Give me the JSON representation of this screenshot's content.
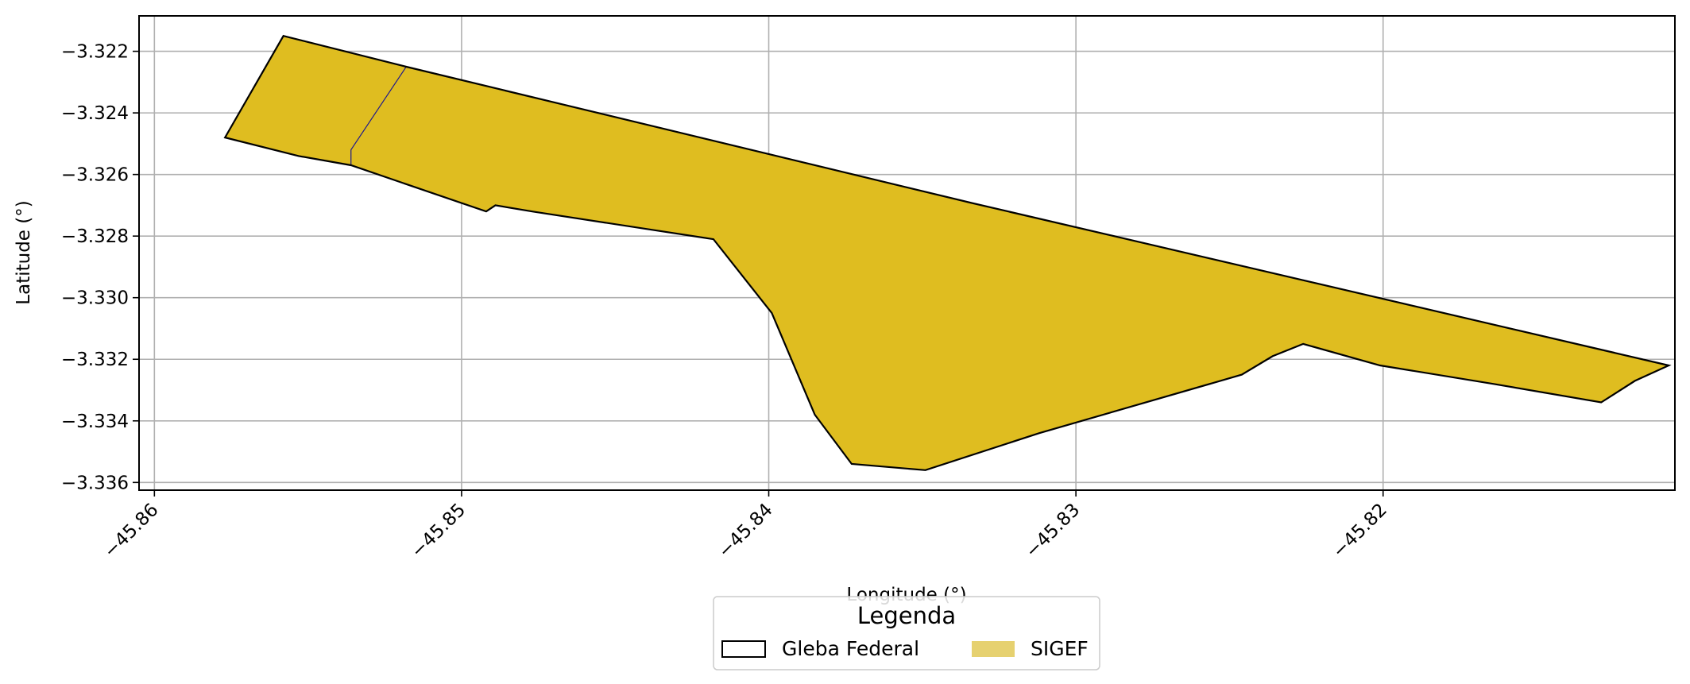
{
  "map": {
    "x_axis": {
      "label": "Longitude (°)",
      "range": [
        -45.8605,
        -45.8105
      ],
      "ticks": [
        {
          "value": -45.86,
          "label": "−45.86"
        },
        {
          "value": -45.85,
          "label": "−45.85"
        },
        {
          "value": -45.84,
          "label": "−45.84"
        },
        {
          "value": -45.83,
          "label": "−45.83"
        },
        {
          "value": -45.82,
          "label": "−45.82"
        }
      ]
    },
    "y_axis": {
      "label": "Latitude (°)",
      "range": [
        -3.33625,
        -3.32085
      ],
      "ticks": [
        {
          "value": -3.322,
          "label": "−3.322"
        },
        {
          "value": -3.324,
          "label": "−3.324"
        },
        {
          "value": -3.326,
          "label": "−3.326"
        },
        {
          "value": -3.328,
          "label": "−3.328"
        },
        {
          "value": -3.33,
          "label": "−3.330"
        },
        {
          "value": -3.332,
          "label": "−3.332"
        },
        {
          "value": -3.334,
          "label": "−3.334"
        },
        {
          "value": -3.336,
          "label": "−3.336"
        }
      ]
    },
    "grid": true,
    "layers": {
      "gleba_federal": {
        "name": "Gleba Federal",
        "style": "outline",
        "edge_color": "#000000",
        "coordinates": [
          [
            -45.8558,
            -3.3215
          ],
          [
            -45.8518,
            -3.3225
          ],
          [
            -45.8335,
            -3.3269
          ],
          [
            -45.8107,
            -3.3322
          ],
          [
            -45.8118,
            -3.3327
          ],
          [
            -45.8129,
            -3.3334
          ],
          [
            -45.8164,
            -3.3328
          ],
          [
            -45.8201,
            -3.3322
          ],
          [
            -45.8226,
            -3.3315
          ],
          [
            -45.8236,
            -3.3319
          ],
          [
            -45.8246,
            -3.3325
          ],
          [
            -45.8312,
            -3.3344
          ],
          [
            -45.8349,
            -3.3356
          ],
          [
            -45.8373,
            -3.3354
          ],
          [
            -45.8385,
            -3.3338
          ],
          [
            -45.8399,
            -3.3305
          ],
          [
            -45.8418,
            -3.3281
          ],
          [
            -45.8477,
            -3.3272
          ],
          [
            -45.8489,
            -3.327
          ],
          [
            -45.8492,
            -3.3272
          ],
          [
            -45.8536,
            -3.3257
          ],
          [
            -45.8553,
            -3.3254
          ],
          [
            -45.8577,
            -3.3248
          ],
          [
            -45.8558,
            -3.3215
          ]
        ]
      },
      "sigef": {
        "name": "SIGEF",
        "fill_color": "#dfbd20",
        "edge_color": "#1f1a8c",
        "parcels": [
          [
            [
              -45.8558,
              -3.3215
            ],
            [
              -45.8518,
              -3.3225
            ],
            [
              -45.8536,
              -3.3252
            ],
            [
              -45.8536,
              -3.3257
            ],
            [
              -45.8553,
              -3.3254
            ],
            [
              -45.8577,
              -3.3248
            ],
            [
              -45.8558,
              -3.3215
            ]
          ],
          [
            [
              -45.8518,
              -3.3225
            ],
            [
              -45.8335,
              -3.3269
            ],
            [
              -45.8107,
              -3.3322
            ],
            [
              -45.8118,
              -3.3327
            ],
            [
              -45.8129,
              -3.3334
            ],
            [
              -45.8164,
              -3.3328
            ],
            [
              -45.8201,
              -3.3322
            ],
            [
              -45.8226,
              -3.3315
            ],
            [
              -45.8236,
              -3.3319
            ],
            [
              -45.8246,
              -3.3325
            ],
            [
              -45.8312,
              -3.3344
            ],
            [
              -45.8349,
              -3.3356
            ],
            [
              -45.8373,
              -3.3354
            ],
            [
              -45.8385,
              -3.3338
            ],
            [
              -45.8399,
              -3.3305
            ],
            [
              -45.8418,
              -3.3281
            ],
            [
              -45.8477,
              -3.3272
            ],
            [
              -45.8489,
              -3.327
            ],
            [
              -45.8492,
              -3.3272
            ],
            [
              -45.8536,
              -3.3257
            ],
            [
              -45.8536,
              -3.3252
            ],
            [
              -45.8518,
              -3.3225
            ]
          ]
        ]
      }
    },
    "legend": {
      "title": "Legenda",
      "placement": "bottom-center",
      "items": [
        {
          "label": "Gleba Federal",
          "swatch": "outline"
        },
        {
          "label": "SIGEF",
          "swatch": "fill",
          "color": "#e6d170"
        }
      ]
    }
  }
}
